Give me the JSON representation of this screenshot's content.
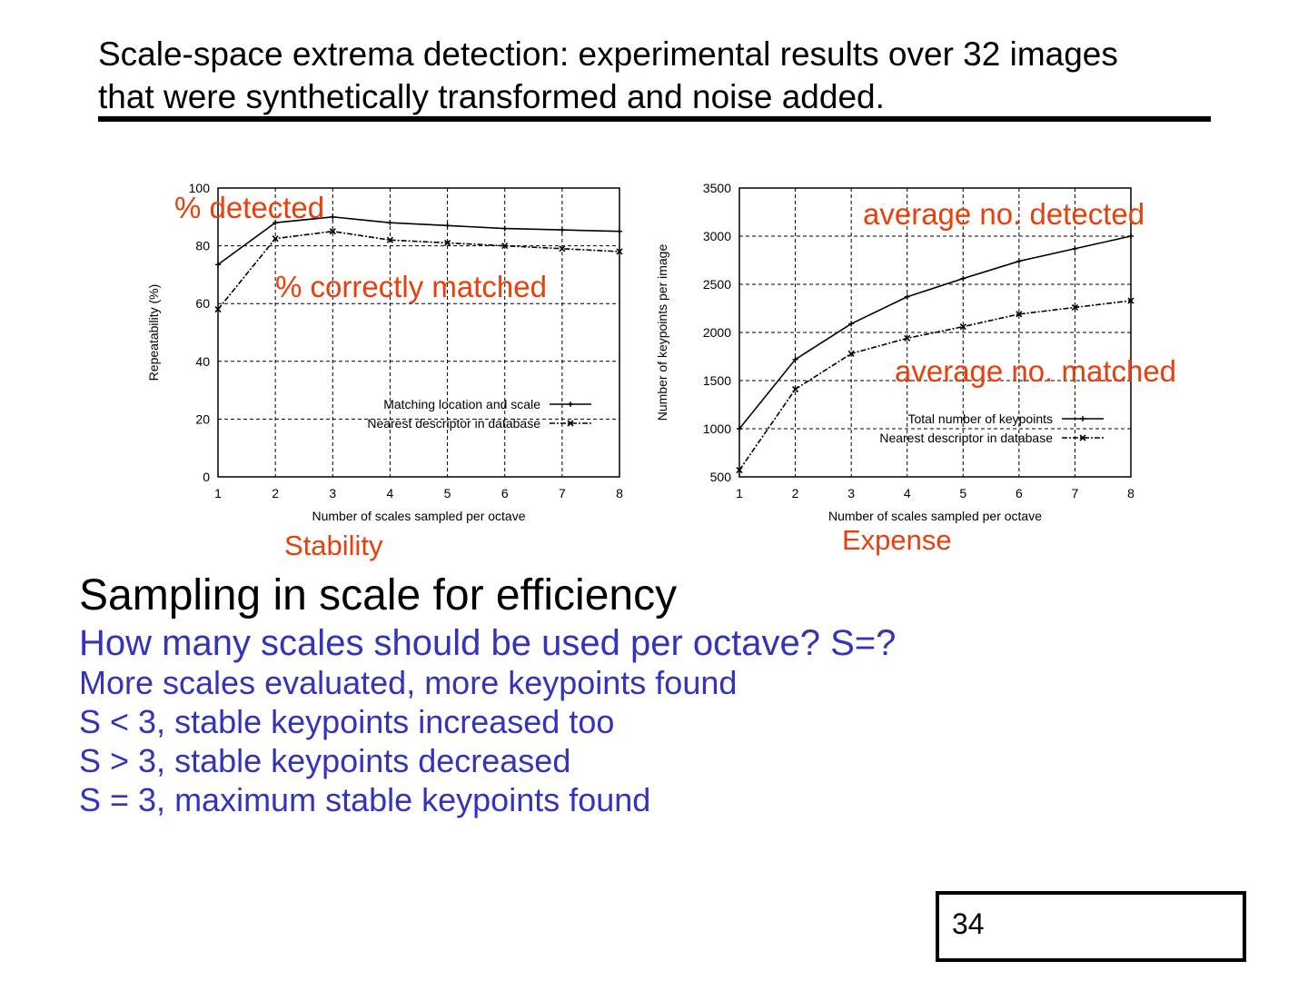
{
  "header": {
    "line1": "Scale-space extrema detection: experimental results over 32 images",
    "line2": "that were synthetically transformed and noise added."
  },
  "charts": {
    "stability_label": "Stability",
    "expense_label": "Expense",
    "ann_detected": "% detected",
    "ann_correct": "% correctly matched",
    "ann_avg_detected": "average no. detected",
    "ann_avg_matched": "average no. matched"
  },
  "chart_data": [
    {
      "type": "line",
      "xlabel": "Number of scales sampled per octave",
      "ylabel": "Repeatability (%)",
      "x": [
        1,
        2,
        3,
        4,
        5,
        6,
        7,
        8
      ],
      "xlim": [
        1,
        8
      ],
      "ylim": [
        0,
        100
      ],
      "yticks": [
        0,
        20,
        40,
        60,
        80,
        100
      ],
      "grid": true,
      "legend_position": "bottom-right",
      "series": [
        {
          "name": "Matching location and scale",
          "values": [
            73.5,
            88,
            90,
            88,
            87,
            86,
            85.5,
            85
          ]
        },
        {
          "name": "Nearest descriptor in database",
          "values": [
            58,
            82.5,
            85,
            82,
            81,
            80,
            79,
            78
          ]
        }
      ]
    },
    {
      "type": "line",
      "xlabel": "Number of scales sampled per octave",
      "ylabel": "Number of keypoints per image",
      "x": [
        1,
        2,
        3,
        4,
        5,
        6,
        7,
        8
      ],
      "xlim": [
        1,
        8
      ],
      "ylim": [
        500,
        3500
      ],
      "yticks": [
        500,
        1000,
        1500,
        2000,
        2500,
        3000,
        3500
      ],
      "grid": true,
      "legend_position": "bottom-right",
      "series": [
        {
          "name": "Total number of keypoints",
          "values": [
            1000,
            1720,
            2090,
            2370,
            2560,
            2740,
            2870,
            3000
          ]
        },
        {
          "name": "Nearest descriptor in database",
          "values": [
            570,
            1410,
            1780,
            1940,
            2060,
            2190,
            2260,
            2330
          ]
        }
      ]
    }
  ],
  "section": {
    "title": "Sampling in scale for efficiency",
    "bullets": [
      "How many scales should be used per octave? S=?",
      "More scales evaluated, more keypoints found",
      "S < 3, stable keypoints increased too",
      "S > 3, stable keypoints decreased",
      "S = 3, maximum stable keypoints found"
    ]
  },
  "page_number": "34",
  "colors": {
    "annotation": "#e8400c",
    "bullet_text": "#3333bb"
  }
}
